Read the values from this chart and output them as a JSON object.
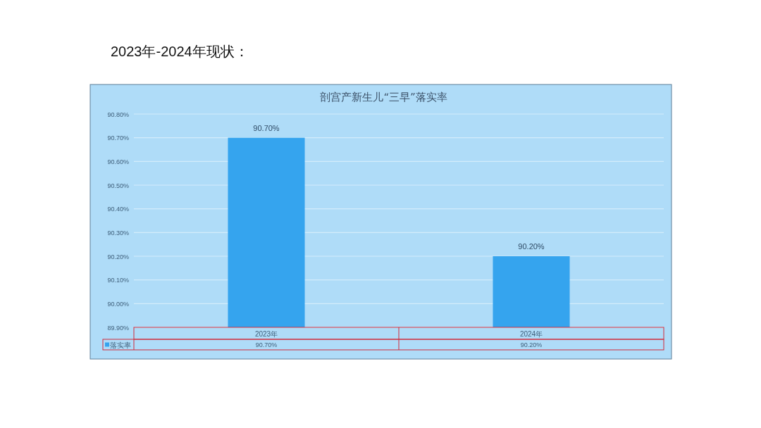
{
  "chart_data": {
    "type": "bar",
    "title": "剖宫产新生儿“三早”落实率",
    "annotations": [
      "2023年-2024年现状："
    ],
    "categories": [
      "2023年",
      "2024年"
    ],
    "series": [
      {
        "name": "落实率",
        "color": "#35a4ee",
        "values": [
          90.7,
          90.2
        ],
        "value_labels": [
          "90.70%",
          "90.20%"
        ]
      }
    ],
    "ylim": [
      89.9,
      90.8
    ],
    "yticks": [
      {
        "value": 89.9,
        "label": "89.90%"
      },
      {
        "value": 90.0,
        "label": "90.00%"
      },
      {
        "value": 90.1,
        "label": "90.10%"
      },
      {
        "value": 90.2,
        "label": "90.20%"
      },
      {
        "value": 90.3,
        "label": "90.30%"
      },
      {
        "value": 90.4,
        "label": "90.40%"
      },
      {
        "value": 90.5,
        "label": "90.50%"
      },
      {
        "value": 90.6,
        "label": "90.60%"
      },
      {
        "value": 90.7,
        "label": "90.70%"
      },
      {
        "value": 90.8,
        "label": "90.80%"
      }
    ],
    "grid": "y",
    "legend": "bottom"
  }
}
